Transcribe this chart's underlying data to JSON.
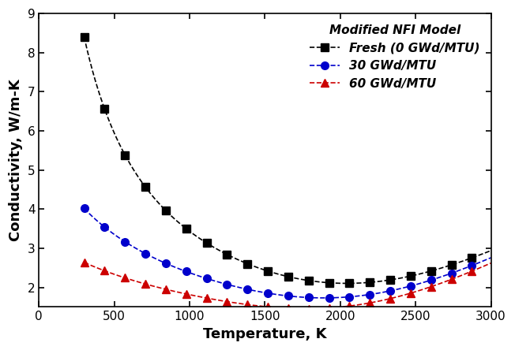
{
  "title": "Modified NFI Model",
  "xlabel": "Temperature, K",
  "ylabel": "Conductivity, W/m-K",
  "xlim": [
    0,
    3000
  ],
  "ylim": [
    1.5,
    9
  ],
  "yticks": [
    2,
    3,
    4,
    5,
    6,
    7,
    8,
    9
  ],
  "xticks": [
    0,
    500,
    1000,
    1500,
    2000,
    2500,
    3000
  ],
  "series": [
    {
      "label": "Fresh (0 GWd/MTU)",
      "color": "#000000",
      "marker": "s",
      "linestyle": "--",
      "burnup": 0
    },
    {
      "label": "30 GWd/MTU",
      "color": "#0000cc",
      "marker": "o",
      "linestyle": "--",
      "burnup": 30
    },
    {
      "label": "60 GWd/MTU",
      "color": "#cc0000",
      "marker": "^",
      "linestyle": "--",
      "burnup": 60
    }
  ],
  "background_color": "#ffffff",
  "legend_fontsize": 11,
  "axis_label_fontsize": 13,
  "tick_fontsize": 11,
  "marker_size": 7,
  "linewidth": 1.2
}
